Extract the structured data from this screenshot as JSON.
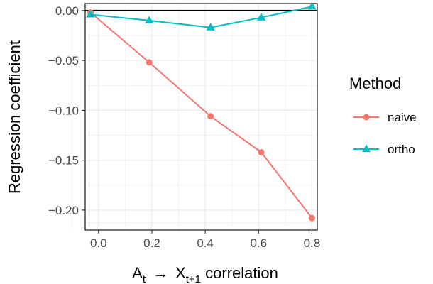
{
  "chart_data": {
    "type": "line",
    "xlabel": {
      "base": "A",
      "base_sub": "t",
      "arrow": "→",
      "target": "X",
      "target_sub": "t+1",
      "suffix": " correlation"
    },
    "ylabel": "Regression coefficient",
    "xlim": [
      -0.05,
      0.82
    ],
    "ylim": [
      -0.22,
      0.007
    ],
    "x_ticks": [
      0.0,
      0.2,
      0.4,
      0.6,
      0.8
    ],
    "x_tick_labels": [
      "0.0",
      "0.2",
      "0.4",
      "0.6",
      "0.8"
    ],
    "y_ticks": [
      0.0,
      -0.05,
      -0.1,
      -0.15,
      -0.2
    ],
    "y_tick_labels": [
      "0.00",
      "−0.05",
      "−0.10",
      "−0.15",
      "−0.20"
    ],
    "reference_line_y": 0.0,
    "grid": true,
    "legend": {
      "title": "Method",
      "position": "right"
    },
    "series": [
      {
        "name": "naive",
        "color": "#F8766D",
        "marker": "circle",
        "x": [
          -0.03,
          0.19,
          0.42,
          0.61,
          0.8
        ],
        "values": [
          -0.002,
          -0.052,
          -0.106,
          -0.142,
          -0.208
        ]
      },
      {
        "name": "ortho",
        "color": "#00BFC4",
        "marker": "triangle",
        "x": [
          -0.03,
          0.19,
          0.42,
          0.61,
          0.8
        ],
        "values": [
          -0.004,
          -0.01,
          -0.017,
          -0.007,
          0.004
        ]
      }
    ]
  }
}
